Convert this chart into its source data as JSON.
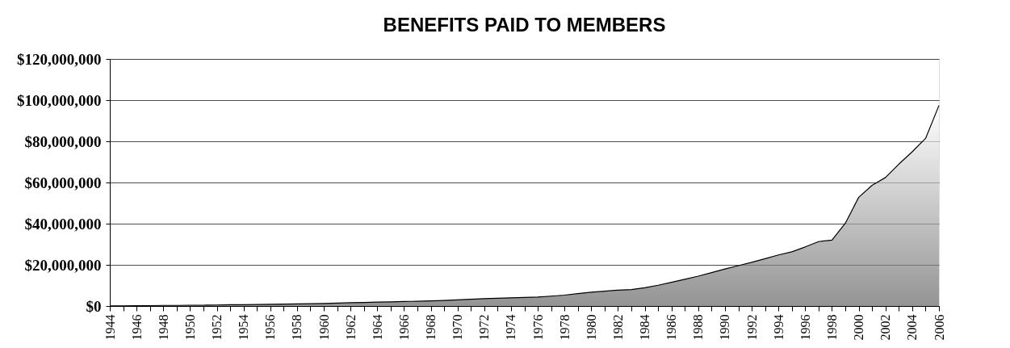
{
  "chart_data": {
    "type": "area",
    "title": "BENEFITS PAID TO MEMBERS",
    "x": [
      1944,
      1945,
      1946,
      1947,
      1948,
      1949,
      1950,
      1951,
      1952,
      1953,
      1954,
      1955,
      1956,
      1957,
      1958,
      1959,
      1960,
      1961,
      1962,
      1963,
      1964,
      1965,
      1966,
      1967,
      1968,
      1969,
      1970,
      1971,
      1972,
      1973,
      1974,
      1975,
      1976,
      1977,
      1978,
      1979,
      1980,
      1981,
      1982,
      1983,
      1984,
      1985,
      1986,
      1987,
      1988,
      1989,
      1990,
      1991,
      1992,
      1993,
      1994,
      1995,
      1996,
      1997,
      1998,
      1999,
      2000,
      2001,
      2002,
      2003,
      2004,
      2005,
      2006
    ],
    "series": [
      {
        "color": "#666666",
        "values": [
          100000,
          100000,
          200000,
          200000,
          300000,
          300000,
          400000,
          400000,
          500000,
          600000,
          600000,
          700000,
          800000,
          900000,
          1000000,
          1100000,
          1200000,
          1400000,
          1600000,
          1700000,
          1900000,
          2000000,
          2200000,
          2300000,
          2500000,
          2700000,
          3000000,
          3300000,
          3600000,
          3800000,
          4000000,
          4200000,
          4400000,
          4800000,
          5300000,
          6000000,
          6700000,
          7200000,
          7700000,
          8000000,
          8900000,
          10100000,
          11500000,
          13000000,
          14500000,
          16200000,
          18000000,
          19600000,
          21200000,
          23000000,
          24800000,
          26300000,
          28700000,
          31300000,
          32000000,
          40200000,
          52800000,
          58600000,
          62400000,
          68900000,
          74900000,
          81400000,
          97400000
        ]
      }
    ],
    "xlim": [
      1944,
      2006
    ],
    "xticks": [
      1944,
      {
        "value": 1945,
        "label": null
      },
      1946,
      {
        "value": 1947,
        "label": null
      },
      1948,
      {
        "value": 1949,
        "label": null
      },
      1950,
      {
        "value": 1951,
        "label": null
      },
      1952,
      {
        "value": 1953,
        "label": null
      },
      1954,
      {
        "value": 1955,
        "label": null
      },
      1956,
      {
        "value": 1957,
        "label": null
      },
      1958,
      {
        "value": 1959,
        "label": null
      },
      1960,
      {
        "value": 1961,
        "label": null
      },
      1962,
      {
        "value": 1963,
        "label": null
      },
      1964,
      {
        "value": 1965,
        "label": null
      },
      1966,
      {
        "value": 1967,
        "label": null
      },
      1968,
      {
        "value": 1969,
        "label": null
      },
      1970,
      {
        "value": 1971,
        "label": null
      },
      1972,
      {
        "value": 1973,
        "label": null
      },
      1974,
      {
        "value": 1975,
        "label": null
      },
      1976,
      {
        "value": 1977,
        "label": null
      },
      1978,
      {
        "value": 1979,
        "label": null
      },
      1980,
      {
        "value": 1981,
        "label": null
      },
      1982,
      {
        "value": 1983,
        "label": null
      },
      1984,
      {
        "value": 1985,
        "label": null
      },
      1986,
      {
        "value": 1987,
        "label": null
      },
      1988,
      {
        "value": 1989,
        "label": null
      },
      1990,
      {
        "value": 1991,
        "label": null
      },
      1992,
      {
        "value": 1993,
        "label": null
      },
      1994,
      {
        "value": 1995,
        "label": null
      },
      1996,
      {
        "value": 1997,
        "label": null
      },
      1998,
      {
        "value": 1999,
        "label": null
      },
      2000,
      {
        "value": 2001,
        "label": null
      },
      2002,
      {
        "value": 2003,
        "label": null
      },
      2004,
      {
        "value": 2005,
        "label": null
      },
      2006
    ],
    "ylim": [
      0,
      120000000
    ],
    "yticks": [
      {
        "value": 0,
        "label": "$0"
      },
      {
        "value": 20000000,
        "label": "$20,000,000"
      },
      {
        "value": 40000000,
        "label": "$40,000,000"
      },
      {
        "value": 60000000,
        "label": "$60,000,000"
      },
      {
        "value": 80000000,
        "label": "$80,000,000"
      },
      {
        "value": 100000000,
        "label": "$100,000,000"
      },
      {
        "value": 120000000,
        "label": "$120,000,000"
      }
    ],
    "grid": "y"
  }
}
